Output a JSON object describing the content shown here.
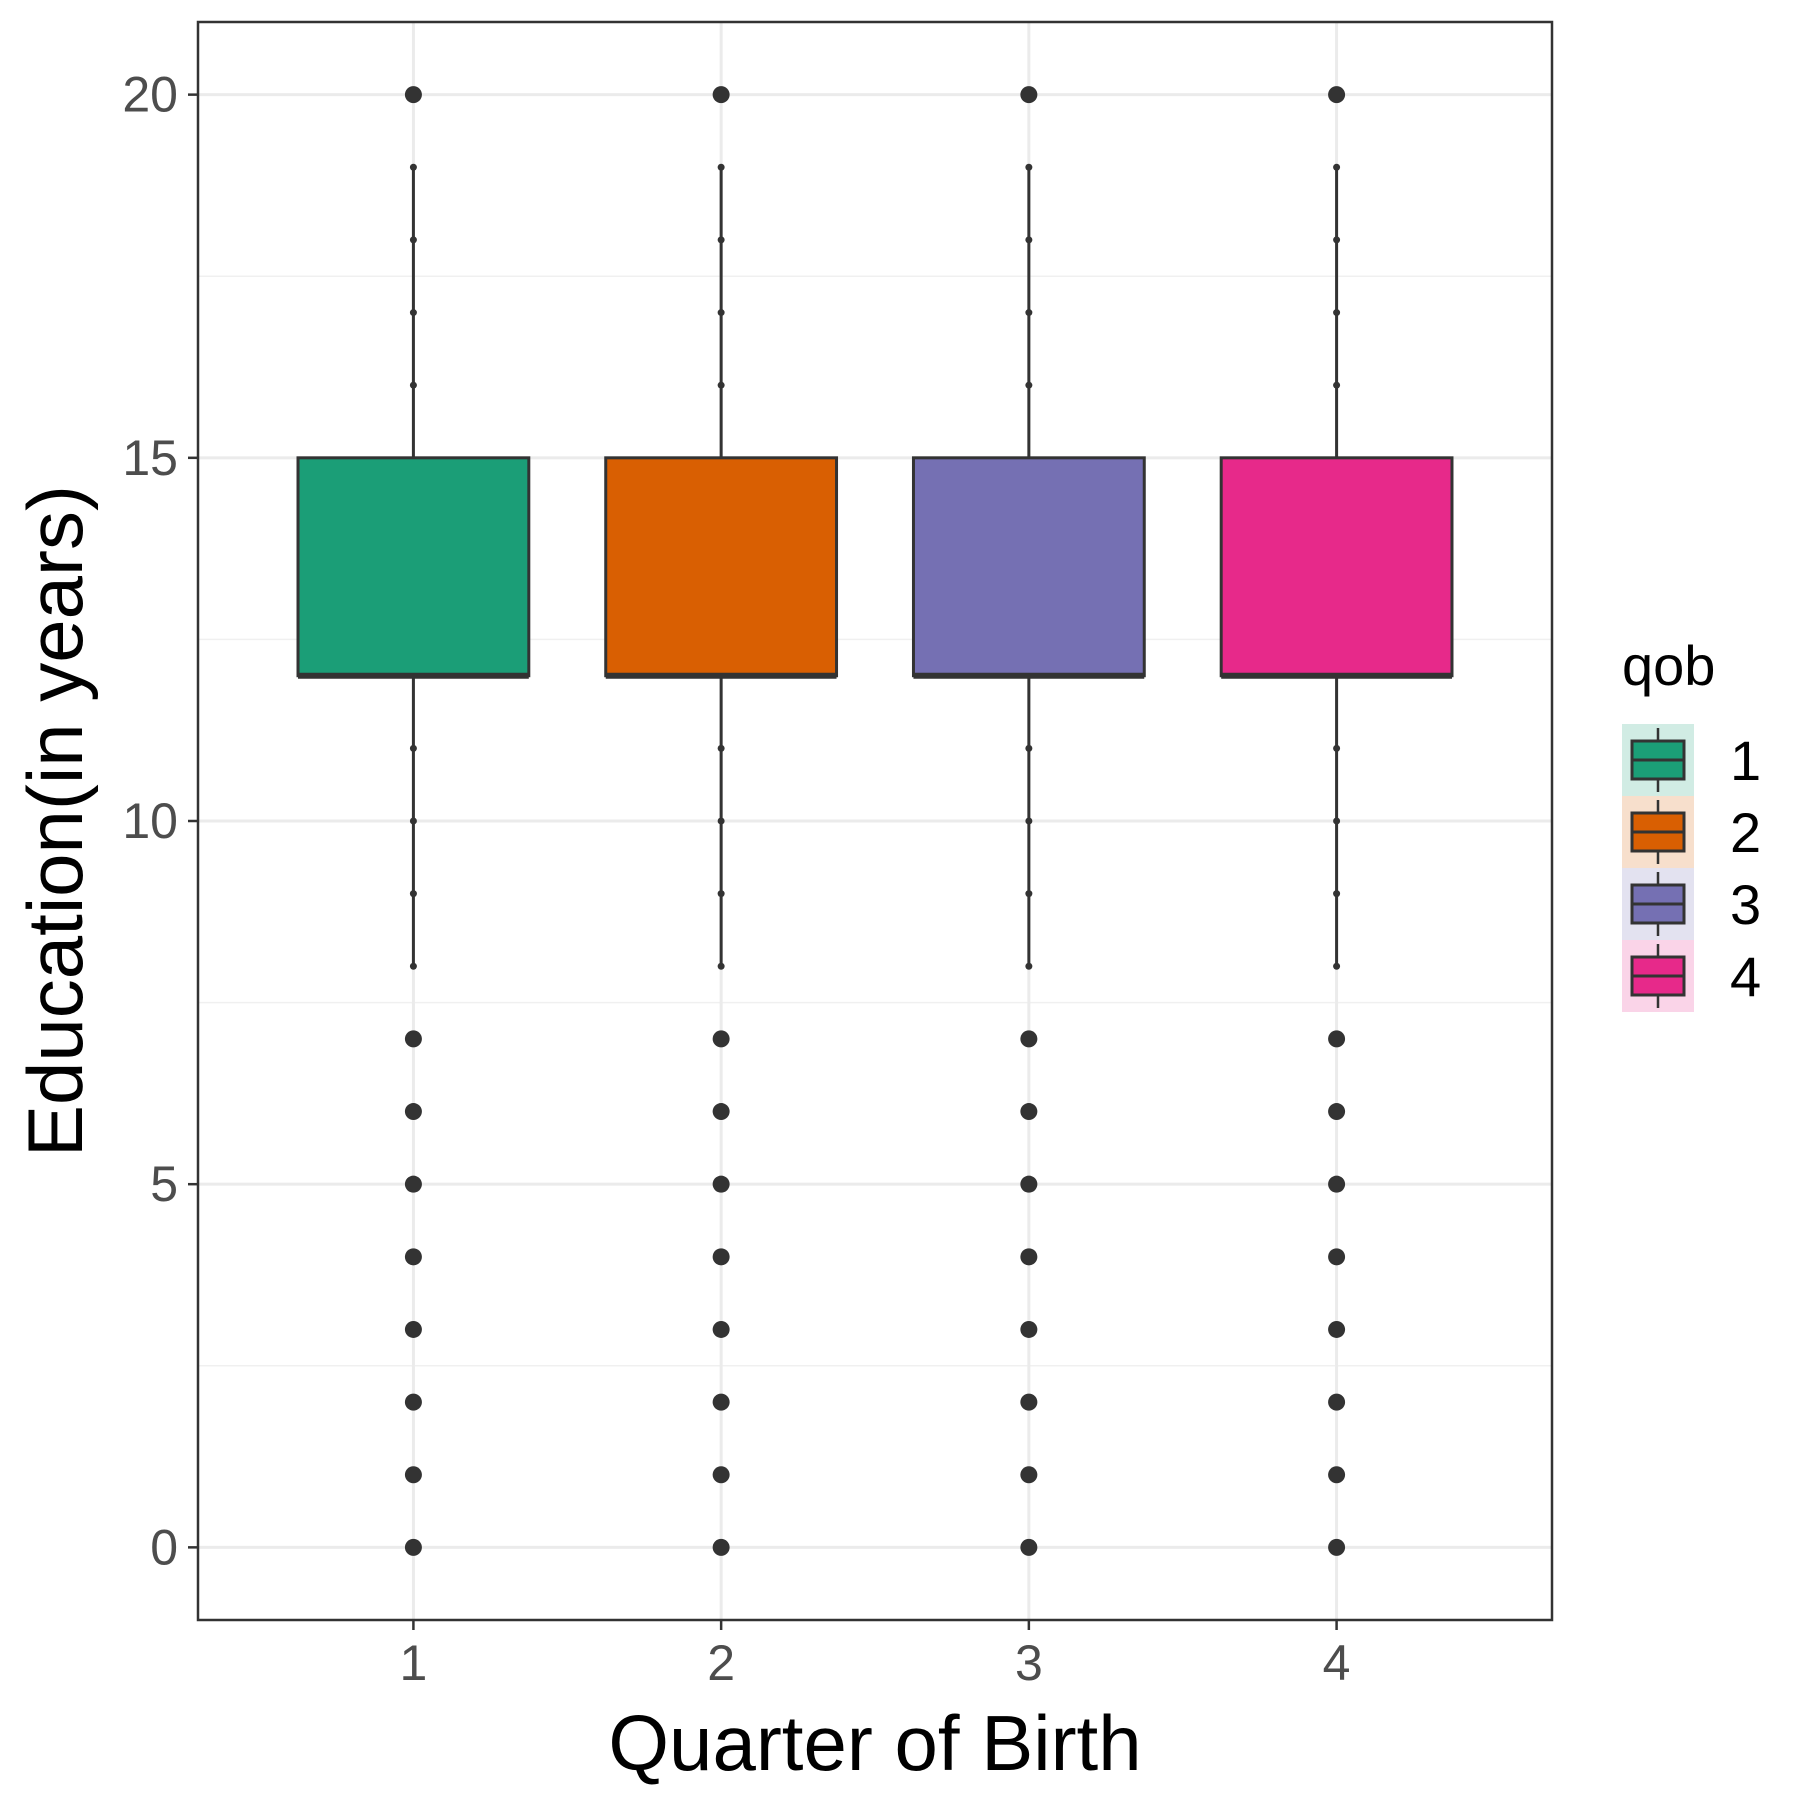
{
  "chart_data": {
    "type": "box",
    "title": "",
    "xlabel": "Quarter of Birth",
    "ylabel": "Education(in years)",
    "ylim": [
      -1,
      21
    ],
    "y_ticks": [
      0,
      5,
      10,
      15,
      20
    ],
    "y_minor_ticks": [
      2.5,
      7.5,
      12.5,
      17.5
    ],
    "categories": [
      "1",
      "2",
      "3",
      "4"
    ],
    "grid": true,
    "legend": {
      "title": "qob",
      "position": "right",
      "labels": [
        "1",
        "2",
        "3",
        "4"
      ]
    },
    "series": [
      {
        "name": "1",
        "color": "#1b9e77",
        "q1": 12,
        "median": 12,
        "q3": 15,
        "whisker_low": 8,
        "whisker_high": 19,
        "inner_points": [
          9,
          10,
          11,
          16,
          17,
          18
        ],
        "outliers": [
          0,
          1,
          2,
          3,
          4,
          5,
          6,
          7,
          20
        ]
      },
      {
        "name": "2",
        "color": "#d95f02",
        "q1": 12,
        "median": 12,
        "q3": 15,
        "whisker_low": 8,
        "whisker_high": 19,
        "inner_points": [
          9,
          10,
          11,
          16,
          17,
          18
        ],
        "outliers": [
          0,
          1,
          2,
          3,
          4,
          5,
          6,
          7,
          20
        ]
      },
      {
        "name": "3",
        "color": "#7570b3",
        "q1": 12,
        "median": 12,
        "q3": 15,
        "whisker_low": 8,
        "whisker_high": 19,
        "inner_points": [
          9,
          10,
          11,
          16,
          17,
          18
        ],
        "outliers": [
          0,
          1,
          2,
          3,
          4,
          5,
          6,
          7,
          20
        ]
      },
      {
        "name": "4",
        "color": "#e7298a",
        "q1": 12,
        "median": 12,
        "q3": 15,
        "whisker_low": 8,
        "whisker_high": 19,
        "inner_points": [
          9,
          10,
          11,
          16,
          17,
          18
        ],
        "outliers": [
          0,
          1,
          2,
          3,
          4,
          5,
          6,
          7,
          20
        ]
      }
    ]
  }
}
